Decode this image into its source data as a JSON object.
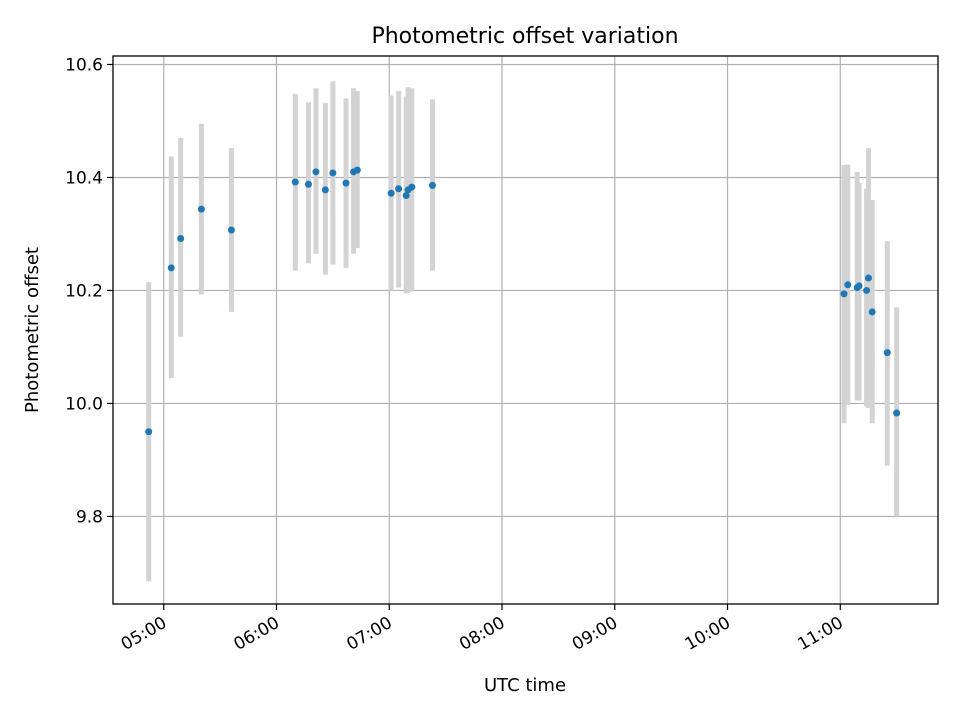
{
  "chart_data": {
    "type": "scatter",
    "title": "Photometric offset variation",
    "xlabel": "UTC time",
    "ylabel": "Photometric offset",
    "x_axis_type": "time",
    "xlim": [
      "04:33",
      "11:52"
    ],
    "ylim": [
      9.645,
      10.615
    ],
    "x_ticks": [
      "05:00",
      "06:00",
      "07:00",
      "08:00",
      "09:00",
      "10:00",
      "11:00"
    ],
    "y_ticks": [
      9.8,
      10.0,
      10.2,
      10.4,
      10.6
    ],
    "y_tick_labels": [
      "9.8",
      "10.0",
      "10.2",
      "10.4",
      "10.6"
    ],
    "grid": true,
    "colors": {
      "point": "#1f77b4",
      "errorbar": "#d3d3d3",
      "grid": "#b0b0b0"
    },
    "points": [
      {
        "x": "04:52",
        "y": 9.95,
        "ylow": 9.685,
        "yhigh": 10.215
      },
      {
        "x": "05:04",
        "y": 10.24,
        "ylow": 10.045,
        "yhigh": 10.437
      },
      {
        "x": "05:09",
        "y": 10.292,
        "ylow": 10.118,
        "yhigh": 10.47
      },
      {
        "x": "05:20",
        "y": 10.344,
        "ylow": 10.193,
        "yhigh": 10.495
      },
      {
        "x": "05:36",
        "y": 10.307,
        "ylow": 10.162,
        "yhigh": 10.452
      },
      {
        "x": "06:10",
        "y": 10.392,
        "ylow": 10.235,
        "yhigh": 10.548
      },
      {
        "x": "06:17",
        "y": 10.388,
        "ylow": 10.248,
        "yhigh": 10.533
      },
      {
        "x": "06:21",
        "y": 10.41,
        "ylow": 10.265,
        "yhigh": 10.558
      },
      {
        "x": "06:26",
        "y": 10.378,
        "ylow": 10.228,
        "yhigh": 10.532
      },
      {
        "x": "06:30",
        "y": 10.408,
        "ylow": 10.246,
        "yhigh": 10.57
      },
      {
        "x": "06:37",
        "y": 10.39,
        "ylow": 10.24,
        "yhigh": 10.54
      },
      {
        "x": "06:41",
        "y": 10.41,
        "ylow": 10.265,
        "yhigh": 10.558
      },
      {
        "x": "06:43",
        "y": 10.413,
        "ylow": 10.275,
        "yhigh": 10.553
      },
      {
        "x": "07:01",
        "y": 10.372,
        "ylow": 10.2,
        "yhigh": 10.545
      },
      {
        "x": "07:05",
        "y": 10.38,
        "ylow": 10.205,
        "yhigh": 10.553
      },
      {
        "x": "07:09",
        "y": 10.368,
        "ylow": 10.195,
        "yhigh": 10.543
      },
      {
        "x": "07:10",
        "y": 10.378,
        "ylow": 10.196,
        "yhigh": 10.56
      },
      {
        "x": "07:12",
        "y": 10.383,
        "ylow": 10.198,
        "yhigh": 10.558
      },
      {
        "x": "07:23",
        "y": 10.386,
        "ylow": 10.235,
        "yhigh": 10.538
      },
      {
        "x": "11:02",
        "y": 10.194,
        "ylow": 9.965,
        "yhigh": 10.422
      },
      {
        "x": "11:04",
        "y": 10.21,
        "ylow": 9.998,
        "yhigh": 10.423
      },
      {
        "x": "11:09",
        "y": 10.205,
        "ylow": 10.005,
        "yhigh": 10.41
      },
      {
        "x": "11:10",
        "y": 10.208,
        "ylow": 10.005,
        "yhigh": 10.39
      },
      {
        "x": "11:14",
        "y": 10.2,
        "ylow": 9.995,
        "yhigh": 10.38
      },
      {
        "x": "11:15",
        "y": 10.222,
        "ylow": 9.992,
        "yhigh": 10.452
      },
      {
        "x": "11:17",
        "y": 10.162,
        "ylow": 9.965,
        "yhigh": 10.36
      },
      {
        "x": "11:25",
        "y": 10.09,
        "ylow": 9.89,
        "yhigh": 10.287
      },
      {
        "x": "11:30",
        "y": 9.983,
        "ylow": 9.8,
        "yhigh": 10.17
      }
    ]
  }
}
